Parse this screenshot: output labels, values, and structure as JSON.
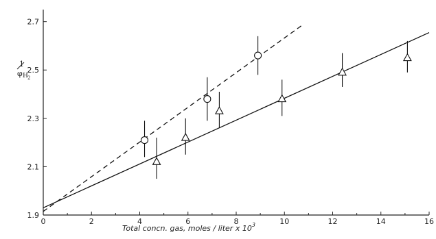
{
  "chart_data": {
    "type": "scatter",
    "xlabel": "Total concn. gas, moles / liter  x 10",
    "xlabel_exponent": "3",
    "ylabel_numerator": "1",
    "ylabel_denominator": "φ",
    "ylabel_subscript": "H",
    "ylabel_sub_subscript": "2",
    "xlim": [
      0,
      16
    ],
    "ylim": [
      1.9,
      2.75
    ],
    "x_ticks": [
      0,
      2,
      4,
      6,
      8,
      10,
      12,
      14,
      16
    ],
    "y_ticks": [
      1.9,
      2.1,
      2.3,
      2.5,
      2.7
    ],
    "x_tick_labels": [
      "0",
      "2",
      "4",
      "6",
      "8",
      "10",
      "12",
      "14",
      "16"
    ],
    "y_tick_labels": [
      "1.9",
      "2.1",
      "2.3",
      "2.5",
      "2.7"
    ],
    "grid": false,
    "series": [
      {
        "marker": "circle",
        "line_style": "dashed",
        "fit_line": {
          "x": [
            0,
            10.8
          ],
          "y": [
            1.915,
            2.69
          ]
        },
        "points": [
          {
            "x": 4.2,
            "y": 2.21,
            "err_low": 2.14,
            "err_high": 2.29
          },
          {
            "x": 6.8,
            "y": 2.38,
            "err_low": 2.29,
            "err_high": 2.47
          },
          {
            "x": 8.9,
            "y": 2.56,
            "err_low": 2.48,
            "err_high": 2.64
          }
        ]
      },
      {
        "marker": "triangle",
        "line_style": "solid",
        "fit_line": {
          "x": [
            0,
            16
          ],
          "y": [
            1.93,
            2.655
          ]
        },
        "points": [
          {
            "x": 4.7,
            "y": 2.12,
            "err_low": 2.05,
            "err_high": 2.22
          },
          {
            "x": 5.9,
            "y": 2.22,
            "err_low": 2.15,
            "err_high": 2.3
          },
          {
            "x": 7.3,
            "y": 2.33,
            "err_low": 2.26,
            "err_high": 2.41
          },
          {
            "x": 9.9,
            "y": 2.38,
            "err_low": 2.31,
            "err_high": 2.46
          },
          {
            "x": 12.4,
            "y": 2.49,
            "err_low": 2.43,
            "err_high": 2.57
          },
          {
            "x": 15.1,
            "y": 2.55,
            "err_low": 2.49,
            "err_high": 2.62
          }
        ]
      }
    ]
  }
}
